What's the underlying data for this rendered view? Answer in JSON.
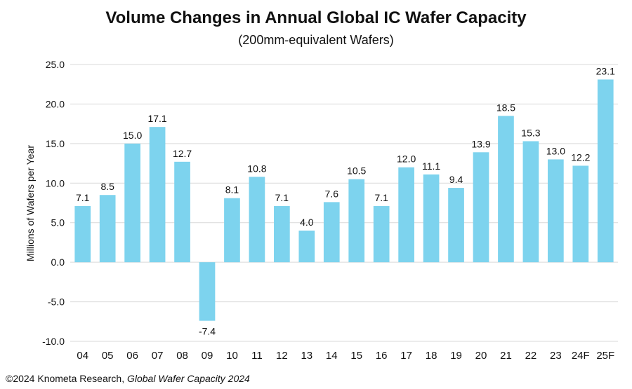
{
  "chart_data": {
    "type": "bar",
    "title": "Volume Changes in Annual Global IC Wafer Capacity",
    "subtitle": "(200mm-equivalent Wafers)",
    "xlabel": "",
    "ylabel": "Millions of Wafers per Year",
    "ylim": [
      -10,
      25
    ],
    "yticks": [
      "25.0",
      "20.0",
      "15.0",
      "10.0",
      "5.0",
      "0.0",
      "-5.0",
      "-10.0"
    ],
    "ytick_values": [
      25,
      20,
      15,
      10,
      5,
      0,
      -5,
      -10
    ],
    "grid": true,
    "categories": [
      "04",
      "05",
      "06",
      "07",
      "08",
      "09",
      "10",
      "11",
      "12",
      "13",
      "14",
      "15",
      "16",
      "17",
      "18",
      "19",
      "20",
      "21",
      "22",
      "23",
      "24F",
      "25F"
    ],
    "values": [
      7.1,
      8.5,
      15.0,
      17.1,
      12.7,
      -7.4,
      8.1,
      10.8,
      7.1,
      4.0,
      7.6,
      10.5,
      7.1,
      12.0,
      11.1,
      9.4,
      13.9,
      18.5,
      15.3,
      13.0,
      12.2,
      23.1
    ],
    "value_labels": [
      "7.1",
      "8.5",
      "15.0",
      "17.1",
      "12.7",
      "-7.4",
      "8.1",
      "10.8",
      "7.1",
      "4.0",
      "7.6",
      "10.5",
      "7.1",
      "12.0",
      "11.1",
      "9.4",
      "13.9",
      "18.5",
      "15.3",
      "13.0",
      "12.2",
      "23.1"
    ],
    "bar_color": "#7dd3ee",
    "grid_color": "#d9d9d9"
  },
  "footer": {
    "copyright": "©2024 Knometa Research, ",
    "source": "Global Wafer Capacity 2024"
  }
}
